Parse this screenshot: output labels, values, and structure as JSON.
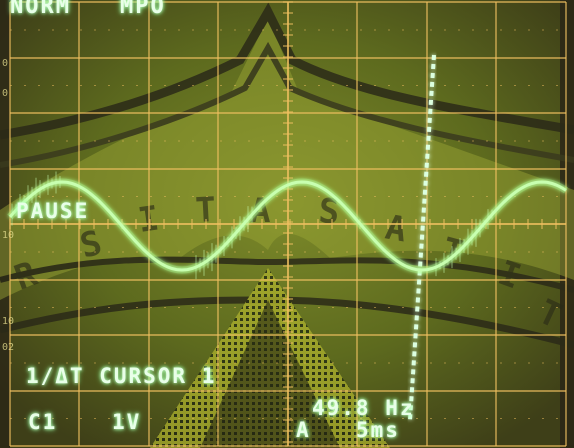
{
  "scope": {
    "mode_label": "NORM",
    "mode_sub_label": "MPO",
    "pause_label": "PAUSE",
    "cursor_label": "1/ΔT CURSOR 1",
    "channel_label": "C1",
    "volts_per_div": "1V",
    "frequency_readout": "49.8 Hz",
    "trigger_label": "A",
    "time_per_div": "5ms",
    "left_margin_ticks": [
      "0",
      "0",
      "10",
      "02",
      "10"
    ],
    "trace_color": "#c8ffb0",
    "cursor_color": "#dcffe0",
    "grid_color": "#f0c060",
    "screen_tint": "#6b7a22",
    "waveform_phases_deg": [
      0,
      360,
      720
    ],
    "background_sticker_letters": [
      "R",
      "S",
      "I",
      "T",
      "A",
      "S",
      "A",
      "T",
      "I",
      "T"
    ]
  }
}
